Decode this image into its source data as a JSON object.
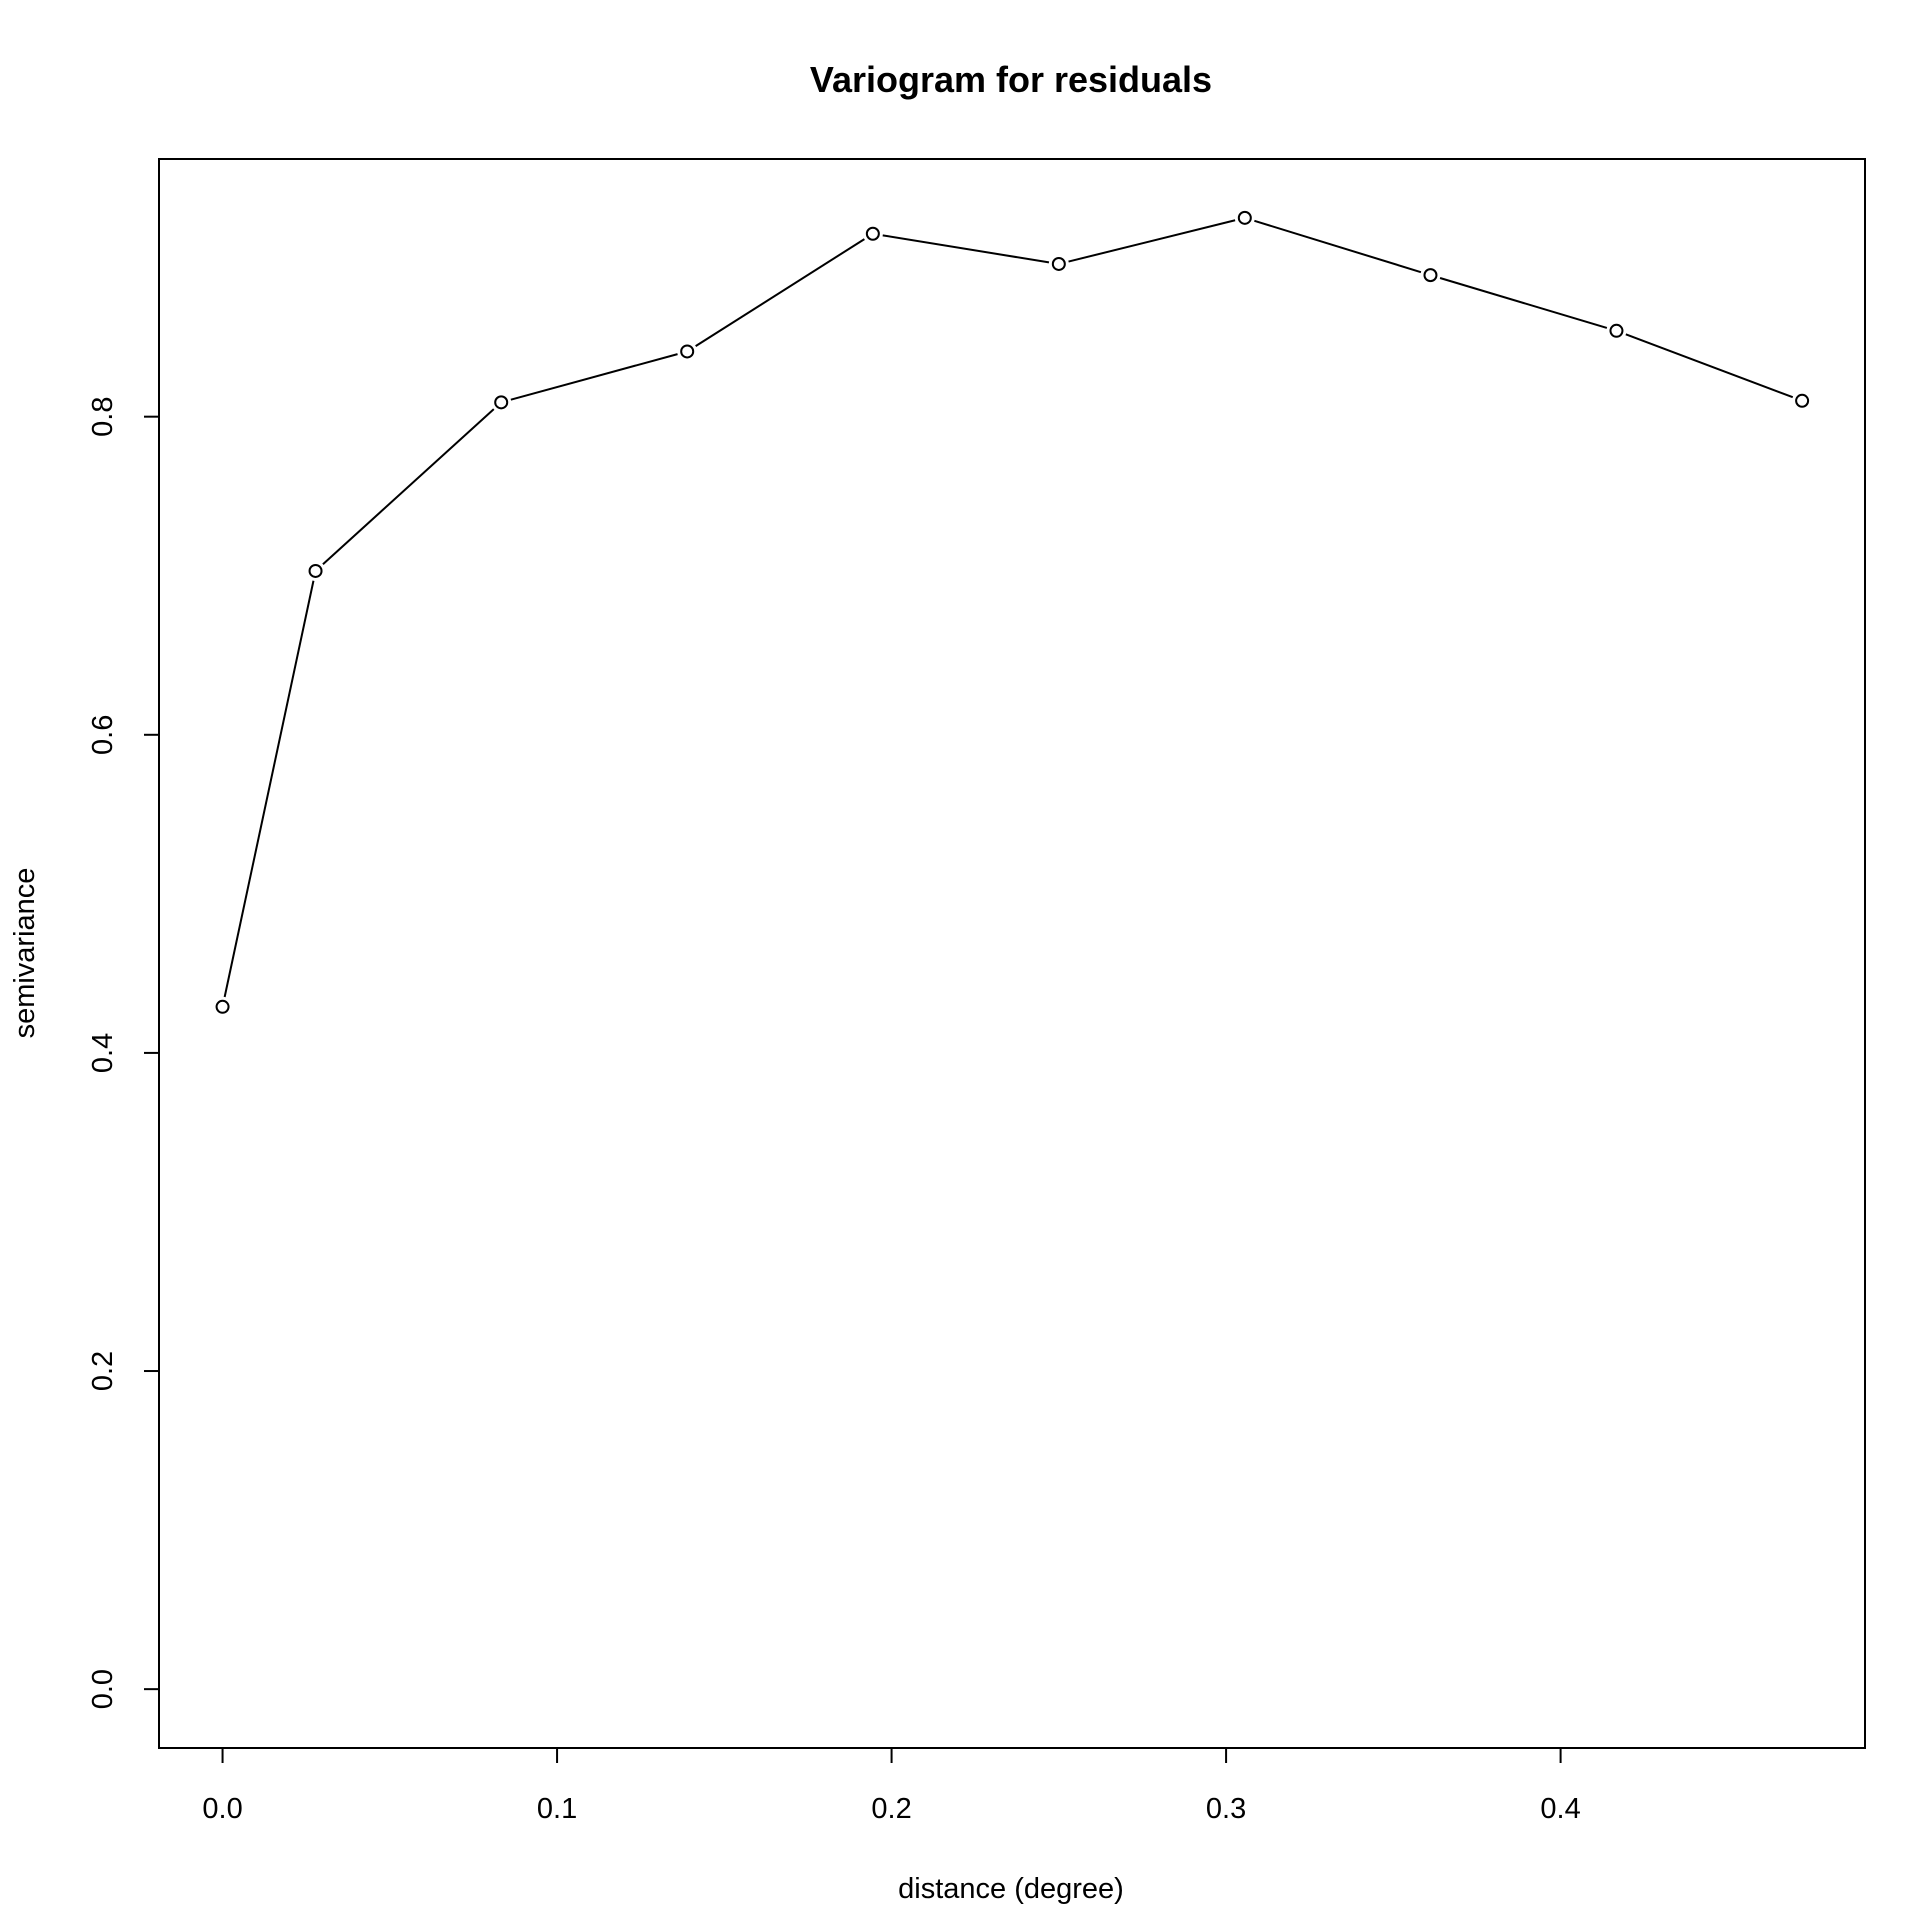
{
  "chart_data": {
    "type": "line",
    "title": "Variogram for residuals",
    "xlabel": "distance (degree)",
    "ylabel": "semivariance",
    "xlim": [
      -0.019,
      0.491
    ],
    "ylim": [
      -0.037,
      0.962
    ],
    "xticks": [
      0.0,
      0.1,
      0.2,
      0.3,
      0.4
    ],
    "xtick_labels": [
      "0.0",
      "0.1",
      "0.2",
      "0.3",
      "0.4"
    ],
    "yticks": [
      0.0,
      0.2,
      0.4,
      0.6,
      0.8
    ],
    "ytick_labels": [
      "0.0",
      "0.2",
      "0.4",
      "0.6",
      "0.8"
    ],
    "grid": false,
    "marker": "open-circle",
    "line_color": "#000000",
    "series": [
      {
        "x": [
          0.0,
          0.0278,
          0.0833,
          0.1389,
          0.1944,
          0.25,
          0.3056,
          0.3611,
          0.4167,
          0.4722
        ],
        "y": [
          0.429,
          0.703,
          0.809,
          0.841,
          0.915,
          0.896,
          0.925,
          0.889,
          0.854,
          0.81
        ]
      }
    ]
  }
}
